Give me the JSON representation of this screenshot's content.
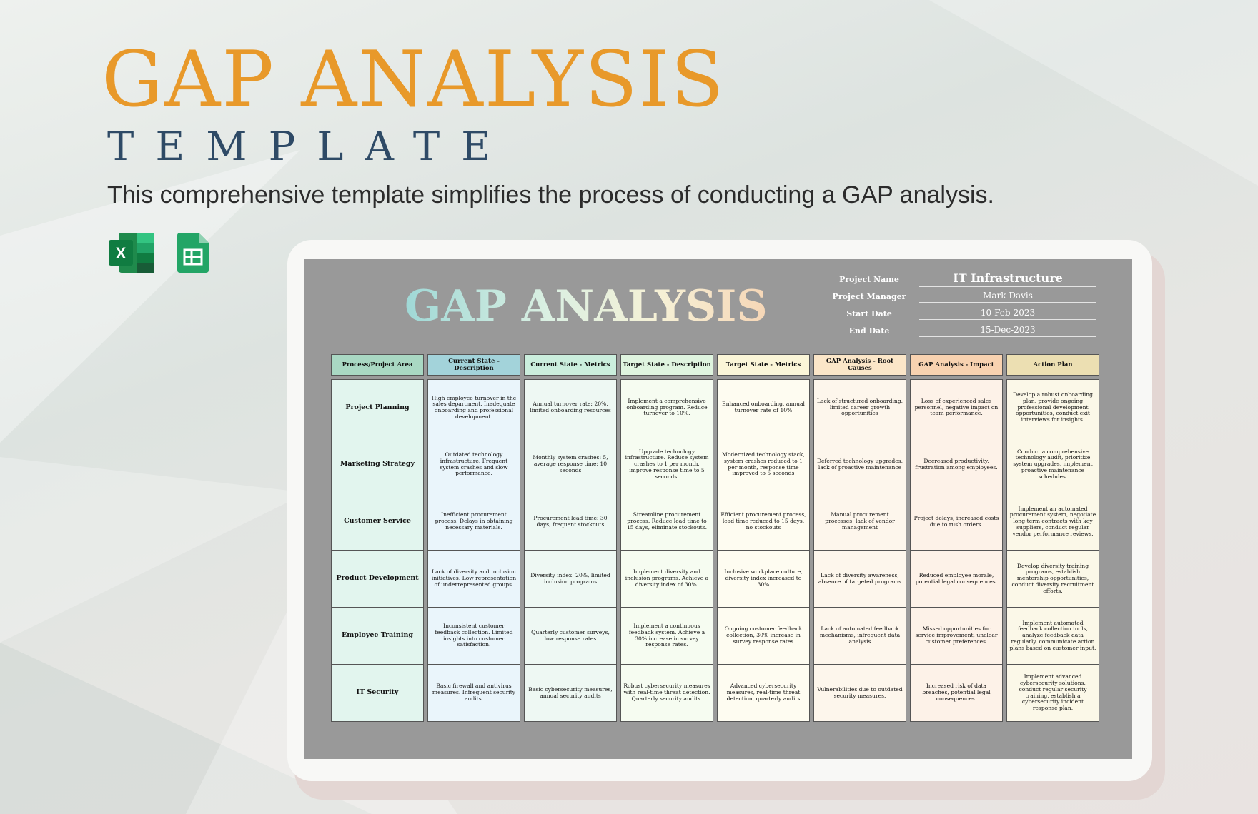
{
  "header": {
    "title": "GAP ANALYSIS",
    "subtitle": "TEMPLATE",
    "tagline": "This comprehensive template simplifies the process of conducting a GAP analysis."
  },
  "apps": [
    {
      "name": "Microsoft Excel",
      "icon": "excel-icon",
      "glyph": "X",
      "color": "#1d6f42"
    },
    {
      "name": "Google Sheets",
      "icon": "google-sheets-icon",
      "color": "#23a566"
    }
  ],
  "sheet": {
    "title": "GAP ANALYSIS",
    "meta": [
      {
        "label": "Project Name",
        "value": "IT Infrastructure"
      },
      {
        "label": "Project Manager",
        "value": "Mark Davis"
      },
      {
        "label": "Start Date",
        "value": "10-Feb-2023"
      },
      {
        "label": "End Date",
        "value": "15-Dec-2023"
      }
    ],
    "columns": [
      {
        "label": "Process/Project Area",
        "header_color": "#a9d8c3",
        "cell_color": "#e2f5ee"
      },
      {
        "label": "Current State - Description",
        "header_color": "#a3d3da",
        "cell_color": "#eaf5fb"
      },
      {
        "label": "Current State - Metrics",
        "header_color": "#cbeedd",
        "cell_color": "#eef8f3"
      },
      {
        "label": "Target State - Description",
        "header_color": "#dff4df",
        "cell_color": "#f6fcf1"
      },
      {
        "label": "Target State - Metrics",
        "header_color": "#fbf6d8",
        "cell_color": "#fefcf1"
      },
      {
        "label": "GAP Analysis - Root Causes",
        "header_color": "#fbe6c8",
        "cell_color": "#fdf6ec"
      },
      {
        "label": "GAP Analysis - Impact",
        "header_color": "#f8d2b0",
        "cell_color": "#fdf2e8"
      },
      {
        "label": "Action Plan",
        "header_color": "#ecdfb2",
        "cell_color": "#fbf8e8"
      }
    ],
    "rows": [
      [
        "Project Planning",
        "High employee turnover in the sales department. Inadequate onboarding and professional development.",
        "Annual turnover rate: 20%, limited onboarding resources",
        "Implement a comprehensive onboarding program. Reduce turnover to 10%.",
        "Enhanced onboarding, annual turnover rate of 10%",
        "Lack of structured onboarding, limited career growth opportunities",
        "Loss of experienced sales personnel, negative impact on team performance.",
        "Develop a robust onboarding plan, provide ongoing professional development opportunities, conduct exit interviews for insights."
      ],
      [
        "Marketing Strategy",
        "Outdated technology infrastructure. Frequent system crashes and slow performance.",
        "Monthly system crashes: 5, average response time: 10 seconds",
        "Upgrade technology infrastructure. Reduce system crashes to 1 per month, improve response time to 5 seconds.",
        "Modernized technology stack, system crashes reduced to 1 per month, response time improved to 5 seconds",
        "Deferred technology upgrades, lack of proactive maintenance",
        "Decreased productivity, frustration among employees.",
        "Conduct a comprehensive technology audit, prioritize system upgrades, implement proactive maintenance schedules."
      ],
      [
        "Customer Service",
        "Inefficient procurement process. Delays in obtaining necessary materials.",
        "Procurement lead time: 30 days, frequent stockouts",
        "Streamline procurement process. Reduce lead time to 15 days, eliminate stockouts.",
        "Efficient procurement process, lead time reduced to 15 days, no stockouts",
        "Manual procurement processes, lack of vendor management",
        "Project delays, increased costs due to rush orders.",
        "Implement an automated procurement system, negotiate long-term contracts with key suppliers, conduct regular vendor performance reviews."
      ],
      [
        "Product Development",
        "Lack of diversity and inclusion initiatives. Low representation of underrepresented groups.",
        "Diversity index: 20%, limited inclusion programs",
        "Implement diversity and inclusion programs. Achieve a diversity index of 30%.",
        "Inclusive workplace culture, diversity index increased to 30%",
        "Lack of diversity awareness, absence of targeted programs",
        "Reduced employee morale, potential legal consequences.",
        "Develop diversity training programs, establish mentorship opportunities, conduct diversity recruitment efforts."
      ],
      [
        "Employee Training",
        "Inconsistent customer feedback collection. Limited insights into customer satisfaction.",
        "Quarterly customer surveys, low response rates",
        "Implement a continuous feedback system. Achieve a 30% increase in survey response rates.",
        "Ongoing customer feedback collection, 30% increase in survey response rates",
        "Lack of automated feedback mechanisms, infrequent data analysis",
        "Missed opportunities for service improvement, unclear customer preferences.",
        "Implement automated feedback collection tools, analyze feedback data regularly, communicate action plans based on customer input."
      ],
      [
        "IT Security",
        "Basic firewall and antivirus measures. Infrequent security audits.",
        "Basic cybersecurity measures, annual security audits",
        "Robust cybersecurity measures with real-time threat detection. Quarterly security audits.",
        "Advanced cybersecurity measures, real-time threat detection, quarterly audits",
        "Vulnerabilities due to outdated security measures.",
        "Increased risk of data breaches, potential legal consequences.",
        "Implement advanced cybersecurity solutions, conduct regular security training, establish a cybersecurity incident response plan."
      ]
    ]
  }
}
